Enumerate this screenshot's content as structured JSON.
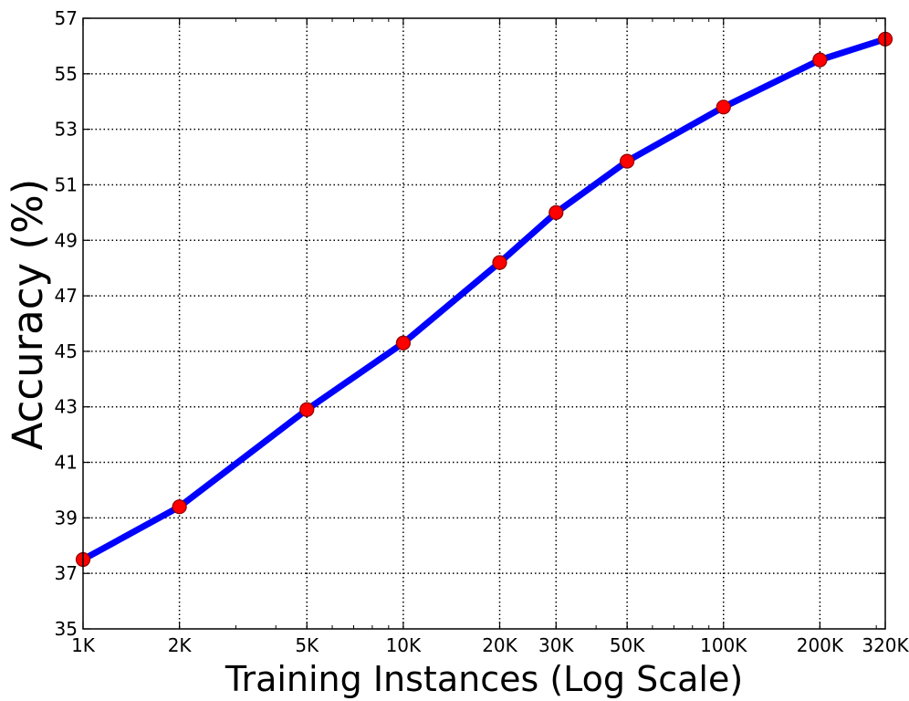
{
  "chart_data": {
    "type": "line",
    "title": "",
    "xlabel": "Training Instances (Log Scale)",
    "ylabel": "Accuracy (%)",
    "x_scale": "log",
    "xlim": [
      1000,
      320000
    ],
    "ylim": [
      35,
      57
    ],
    "grid": true,
    "grid_style": "dotted",
    "x_ticks": [
      {
        "value": 1000,
        "label": "1K"
      },
      {
        "value": 2000,
        "label": "2K"
      },
      {
        "value": 5000,
        "label": "5K"
      },
      {
        "value": 10000,
        "label": "10K"
      },
      {
        "value": 20000,
        "label": "20K"
      },
      {
        "value": 30000,
        "label": "30K"
      },
      {
        "value": 50000,
        "label": "50K"
      },
      {
        "value": 100000,
        "label": "100K"
      },
      {
        "value": 200000,
        "label": "200K"
      },
      {
        "value": 320000,
        "label": "320K"
      }
    ],
    "y_ticks": [
      35,
      37,
      39,
      41,
      43,
      45,
      47,
      49,
      51,
      53,
      55,
      57
    ],
    "series": [
      {
        "line_color": "#0000ff",
        "marker_color": "#ff0000",
        "marker_edge_color": "#8b0000",
        "x": [
          1000,
          2000,
          5000,
          10000,
          20000,
          30000,
          50000,
          100000,
          200000,
          320000
        ],
        "y": [
          37.5,
          39.4,
          42.9,
          45.3,
          48.2,
          50.0,
          51.85,
          53.8,
          55.5,
          56.25
        ]
      }
    ]
  }
}
